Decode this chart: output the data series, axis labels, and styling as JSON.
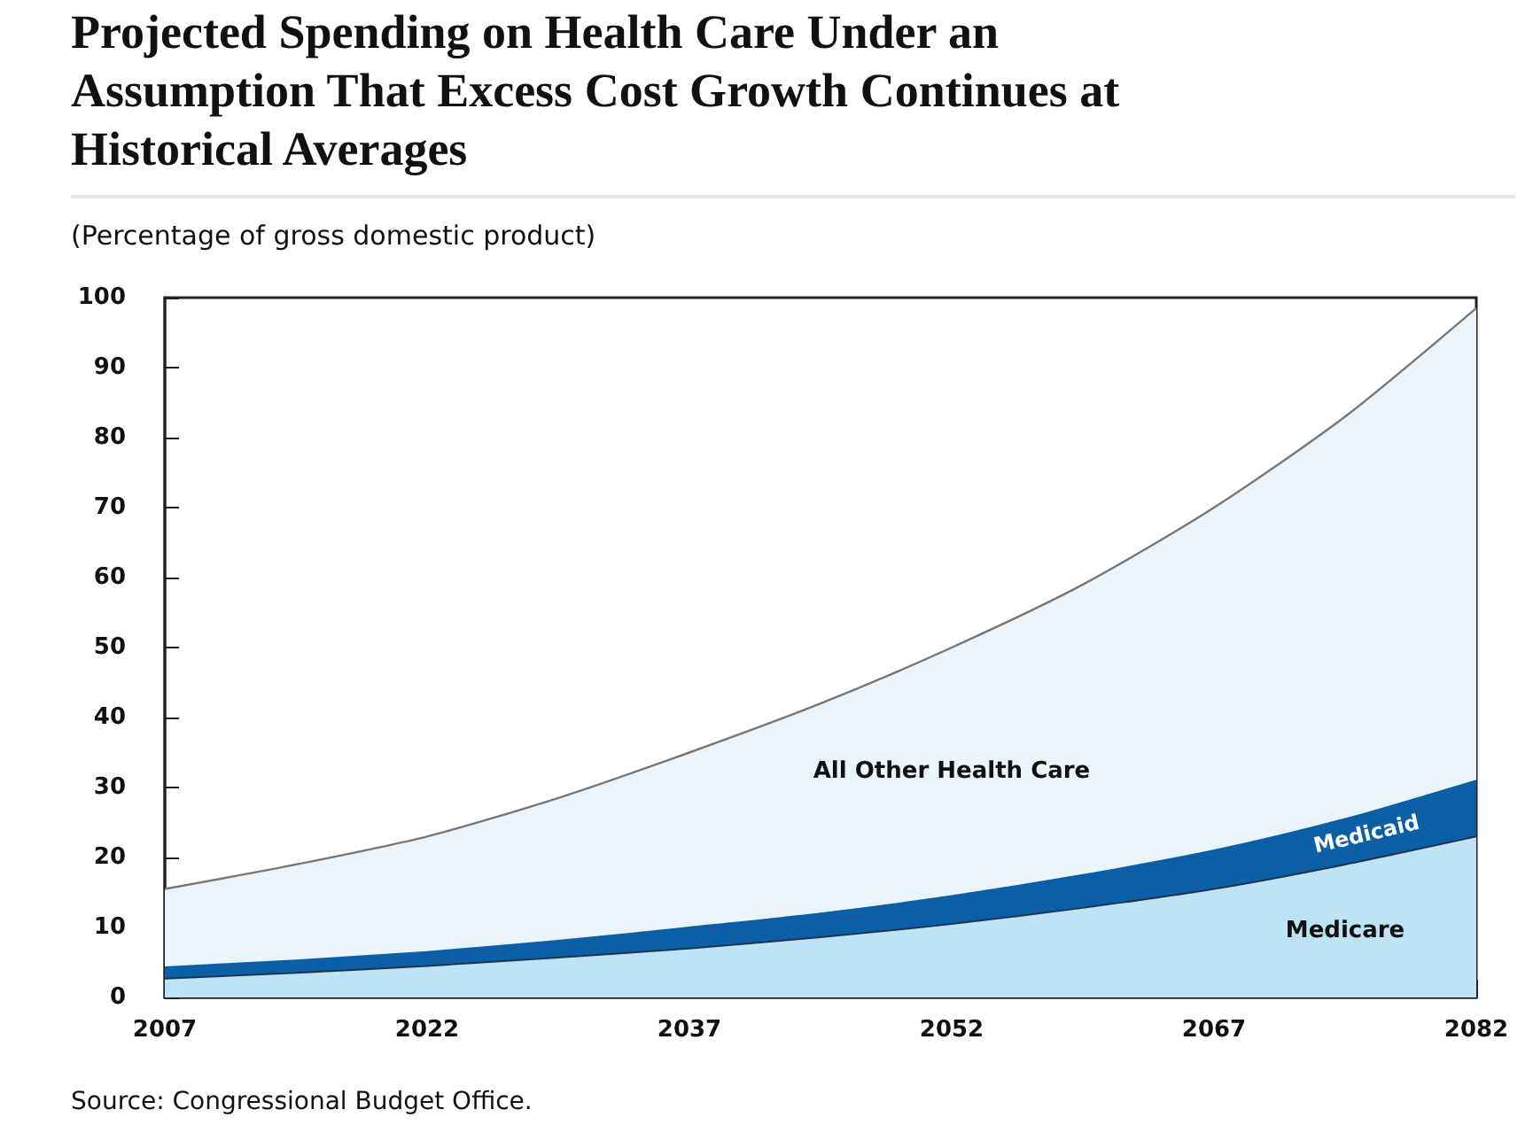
{
  "chart_data": {
    "type": "area",
    "stacked": true,
    "title": "Projected Spending on Health Care Under an Assumption That Excess Cost Growth Continues at Historical Averages",
    "ylabel": "(Percentage of gross domestic product)",
    "annotations": [
      "Source:   Congressional Budget Office."
    ],
    "x": [
      2007,
      2014.5,
      2022,
      2029.5,
      2037,
      2044.5,
      2052,
      2059.5,
      2067,
      2074.5,
      2082
    ],
    "series": [
      {
        "name": "Medicare",
        "color": "#bde3f5",
        "values": [
          2.7,
          3.5,
          4.5,
          5.7,
          7,
          8.6,
          10.5,
          12.8,
          15.5,
          19,
          23
        ]
      },
      {
        "name": "Medicaid",
        "color": "#0a5fa6",
        "values": [
          1.6,
          1.8,
          2,
          2.4,
          3,
          3.4,
          4,
          4.7,
          5.5,
          6.5,
          8
        ]
      },
      {
        "name": "All Other Health Care",
        "color": "#eaf4fc",
        "values": [
          11.2,
          13.7,
          16.5,
          20.4,
          25,
          30,
          35.5,
          41.5,
          49,
          57.5,
          67.5
        ]
      }
    ],
    "xlim": [
      2007,
      2082
    ],
    "xticks": [
      2007,
      2022,
      2037,
      2052,
      2067,
      2082
    ],
    "ylim": [
      0,
      100
    ],
    "yticks": [
      0,
      10,
      20,
      30,
      40,
      50,
      60,
      70,
      80,
      90,
      100
    ],
    "grid": false,
    "legend": false
  }
}
